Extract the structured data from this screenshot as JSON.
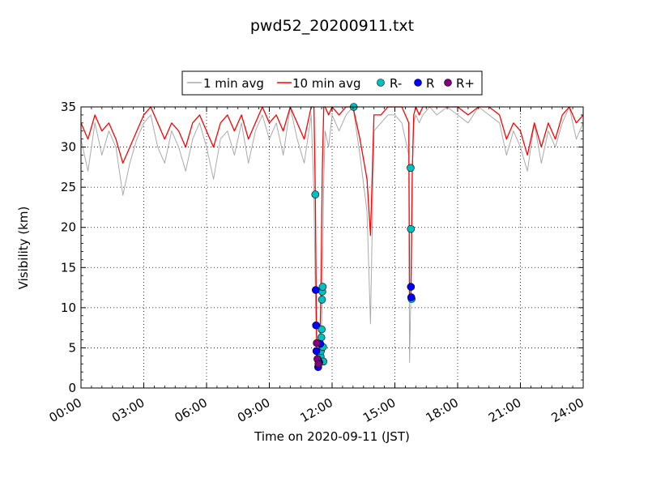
{
  "chart_data": {
    "type": "line",
    "title": "pwd52_20200911.txt",
    "xlabel": "Time on 2020-09-11 (JST)",
    "ylabel": "Visibility (km)",
    "xlim": [
      "00:00",
      "24:00"
    ],
    "ylim": [
      0,
      35
    ],
    "x_ticks": [
      "00:00",
      "03:00",
      "06:00",
      "09:00",
      "12:00",
      "15:00",
      "18:00",
      "21:00",
      "24:00"
    ],
    "y_ticks": [
      0,
      5,
      10,
      15,
      20,
      25,
      30,
      35
    ],
    "grid": true,
    "legend_position": "top-center",
    "legend": [
      "1 min avg",
      "10 min avg",
      "R-",
      "R",
      "R+"
    ],
    "colors": {
      "one_min": "#aaaaaa",
      "ten_min": "#ff0000",
      "R-": "#00bfbf",
      "R": "#0000ff",
      "R+": "#800080"
    },
    "series": [
      {
        "name": "1 min avg",
        "style": "line",
        "x": [
          "00:00",
          "00:20",
          "00:40",
          "01:00",
          "01:20",
          "01:40",
          "02:00",
          "02:20",
          "02:40",
          "03:00",
          "03:20",
          "03:40",
          "04:00",
          "04:20",
          "04:40",
          "05:00",
          "05:20",
          "05:40",
          "06:00",
          "06:20",
          "06:40",
          "07:00",
          "07:20",
          "07:40",
          "08:00",
          "08:20",
          "08:40",
          "09:00",
          "09:20",
          "09:40",
          "10:00",
          "10:20",
          "10:40",
          "11:00",
          "11:08",
          "11:12",
          "11:16",
          "11:20",
          "11:24",
          "11:28",
          "11:32",
          "11:36",
          "11:40",
          "11:50",
          "12:00",
          "12:20",
          "12:40",
          "13:00",
          "13:20",
          "13:40",
          "13:50",
          "14:00",
          "14:20",
          "14:40",
          "15:00",
          "15:20",
          "15:40",
          "15:42",
          "15:46",
          "15:50",
          "15:54",
          "16:00",
          "16:10",
          "16:20",
          "16:40",
          "17:00",
          "17:30",
          "18:00",
          "18:30",
          "19:00",
          "19:30",
          "20:00",
          "20:20",
          "20:40",
          "21:00",
          "21:20",
          "21:40",
          "22:00",
          "22:20",
          "22:40",
          "23:00",
          "23:20",
          "23:40",
          "24:00"
        ],
        "values": [
          31,
          27,
          33,
          29,
          32,
          30,
          24,
          28,
          31,
          33,
          34,
          30,
          28,
          32,
          30,
          27,
          31,
          33,
          30,
          26,
          31,
          32,
          29,
          33,
          28,
          32,
          34,
          31,
          33,
          29,
          35,
          31,
          28,
          34,
          24,
          12,
          2.2,
          5,
          3,
          3,
          12,
          26,
          32,
          30,
          34,
          32,
          34,
          35,
          29,
          22,
          8,
          32,
          33,
          34,
          34,
          33,
          29,
          3.2,
          12,
          27,
          33,
          34,
          33,
          34,
          35,
          34,
          35,
          34,
          33,
          35,
          34,
          33,
          29,
          32,
          30,
          27,
          33,
          28,
          32,
          30,
          33,
          35,
          31,
          33
        ]
      },
      {
        "name": "10 min avg",
        "style": "line",
        "x": [
          "00:00",
          "00:20",
          "00:40",
          "01:00",
          "01:20",
          "01:40",
          "02:00",
          "02:20",
          "02:40",
          "03:00",
          "03:20",
          "03:40",
          "04:00",
          "04:20",
          "04:40",
          "05:00",
          "05:20",
          "05:40",
          "06:00",
          "06:20",
          "06:40",
          "07:00",
          "07:20",
          "07:40",
          "08:00",
          "08:20",
          "08:40",
          "09:00",
          "09:20",
          "09:40",
          "10:00",
          "10:20",
          "10:40",
          "11:00",
          "11:08",
          "11:12",
          "11:16",
          "11:20",
          "11:24",
          "11:28",
          "11:32",
          "11:36",
          "11:40",
          "11:50",
          "12:00",
          "12:20",
          "12:40",
          "13:00",
          "13:20",
          "13:40",
          "13:50",
          "14:00",
          "14:20",
          "14:40",
          "15:00",
          "15:20",
          "15:40",
          "15:42",
          "15:46",
          "15:50",
          "15:54",
          "16:00",
          "16:10",
          "16:20",
          "16:40",
          "17:00",
          "17:30",
          "18:00",
          "18:30",
          "19:00",
          "19:30",
          "20:00",
          "20:20",
          "20:40",
          "21:00",
          "21:20",
          "21:40",
          "22:00",
          "22:20",
          "22:40",
          "23:00",
          "23:20",
          "23:40",
          "24:00"
        ],
        "values": [
          33,
          31,
          34,
          32,
          33,
          31,
          28,
          30,
          32,
          34,
          35,
          33,
          31,
          33,
          32,
          30,
          33,
          34,
          32,
          30,
          33,
          34,
          32,
          34,
          31,
          33,
          35,
          33,
          34,
          32,
          35,
          33,
          31,
          35,
          35,
          24,
          3,
          3,
          3,
          12,
          27,
          35,
          35,
          34,
          35,
          34,
          35,
          35,
          31,
          26,
          19,
          34,
          34,
          35,
          35,
          35,
          33,
          11,
          11,
          27,
          34,
          35,
          34,
          35,
          35,
          35,
          35,
          35,
          34,
          35,
          35,
          34,
          31,
          33,
          32,
          29,
          33,
          30,
          33,
          31,
          34,
          35,
          33,
          34
        ]
      },
      {
        "name": "R-",
        "style": "marker",
        "x": [
          "11:12",
          "11:27",
          "11:28",
          "11:29",
          "11:30",
          "11:31",
          "11:32",
          "11:33",
          "11:34",
          "11:35",
          "13:02",
          "15:45",
          "15:46",
          "15:48"
        ],
        "values": [
          24.1,
          3.9,
          4.6,
          6.3,
          7.3,
          11.0,
          12.0,
          12.6,
          5.1,
          3.3,
          35.0,
          27.4,
          19.8,
          11.1
        ]
      },
      {
        "name": "R",
        "style": "marker",
        "x": [
          "11:13",
          "11:14",
          "11:15",
          "11:20",
          "11:23",
          "11:26",
          "15:46",
          "15:47"
        ],
        "values": [
          12.2,
          7.8,
          4.6,
          2.6,
          3.2,
          5.5,
          12.6,
          11.3
        ]
      },
      {
        "name": "R+",
        "style": "marker",
        "x": [
          "11:16",
          "11:18",
          "11:21"
        ],
        "values": [
          5.6,
          3.6,
          3.0
        ]
      }
    ]
  }
}
